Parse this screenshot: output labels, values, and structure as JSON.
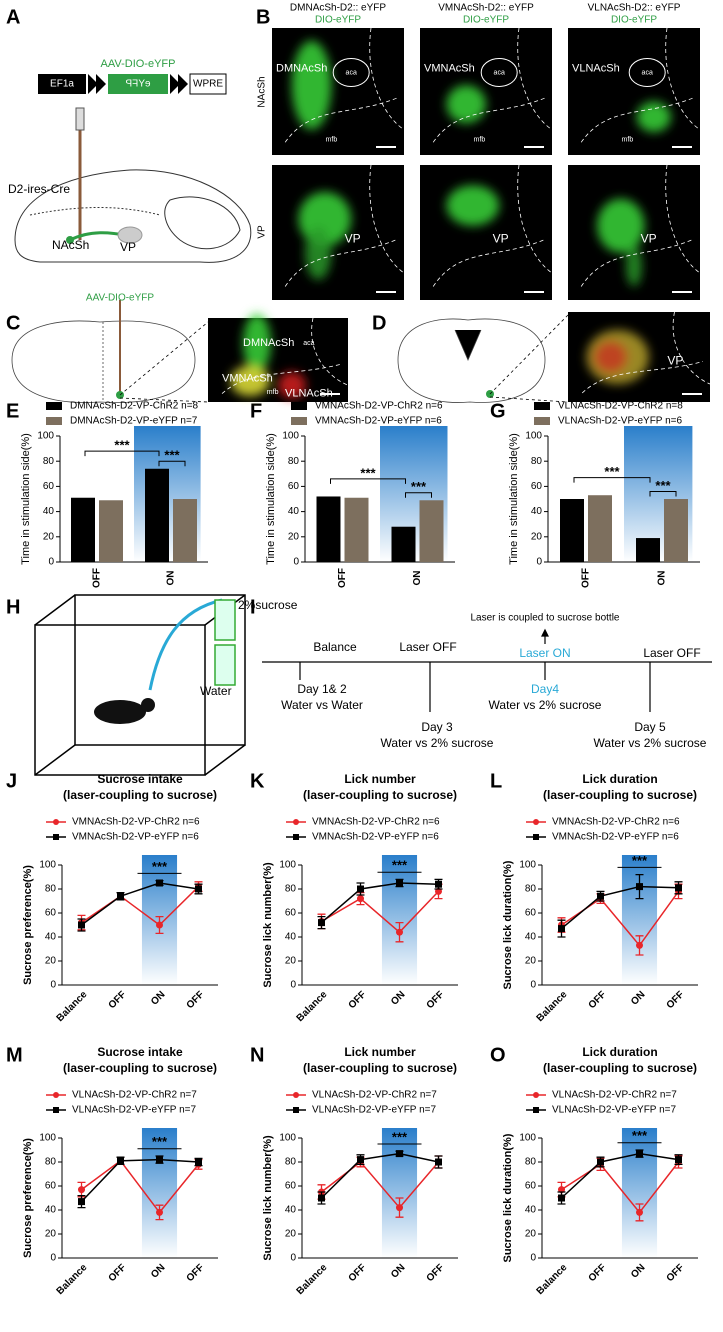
{
  "labels": [
    "A",
    "B",
    "C",
    "D",
    "E",
    "F",
    "G",
    "H",
    "I",
    "J",
    "K",
    "L",
    "M",
    "N",
    "O"
  ],
  "a": {
    "vector": "AAV-DIO-eYFP",
    "promoter": "EF1a",
    "gene": "eYFP",
    "wpre": "WPRE",
    "mouse": "D2-ires-Cre",
    "nacsh": "NAcSh",
    "vp": "VP"
  },
  "b": {
    "columns": [
      {
        "title": "DMNAcSh-D2:: eYFP",
        "virus": "DIO-eYFP"
      },
      {
        "title": "VMNAcSh-D2:: eYFP",
        "virus": "DIO-eYFP"
      },
      {
        "title": "VLNAcSh-D2:: eYFP",
        "virus": "DIO-eYFP"
      }
    ],
    "rows": [
      "NAcSh",
      "VP"
    ],
    "image_labels": [
      "DMNAcSh",
      "aca",
      "mfb",
      "VMNAcSh",
      "aca",
      "mfb",
      "VLNAcSh",
      "aca",
      "mfb",
      "VP",
      "VP",
      "VP"
    ]
  },
  "c": {
    "virus": "AAV-DIO-eYFP",
    "labels": [
      "DMNAcSh",
      "aca",
      "VMNAcSh",
      "mfb",
      "VLNAcSh"
    ]
  },
  "d": {
    "label": "VP"
  },
  "h": {
    "sucrose": "2%sucrose",
    "water": "Water"
  },
  "i": {
    "note": "Laser is coupled to sucrose bottle",
    "stages": [
      "Balance",
      "Laser OFF",
      "Laser ON",
      "Laser OFF"
    ],
    "days": [
      {
        "day": "Day 1& 2",
        "test": "Water vs Water"
      },
      {
        "day": "Day 3",
        "test": "Water vs 2% sucrose"
      },
      {
        "day": "Day4",
        "test": "Water vs 2% sucrose"
      },
      {
        "day": "Day 5",
        "test": "Water vs 2% sucrose"
      }
    ]
  },
  "chart_data": [
    {
      "type": "bar",
      "y_label": "Time in stimulation side(%)",
      "categories": [
        "OFF",
        "ON"
      ],
      "ylim": [
        0,
        100
      ],
      "yticks": [
        0,
        20,
        40,
        60,
        80,
        100
      ],
      "annotations": [
        "***",
        "***"
      ],
      "series": [
        {
          "name": "DMNAcSh-D2-VP-ChR2 n=8",
          "color": "#000000",
          "values": [
            51,
            74
          ]
        },
        {
          "name": "DMNAcSh-D2-VP-eYFP n=7",
          "color": "#7d6f5e",
          "values": [
            49,
            50
          ]
        }
      ]
    },
    {
      "type": "bar",
      "y_label": "Time in stimulation side(%)",
      "categories": [
        "OFF",
        "ON"
      ],
      "ylim": [
        0,
        100
      ],
      "yticks": [
        0,
        20,
        40,
        60,
        80,
        100
      ],
      "annotations": [
        "***",
        "***"
      ],
      "series": [
        {
          "name": "VMNAcSh-D2-VP-ChR2 n=6",
          "color": "#000000",
          "values": [
            52,
            28
          ]
        },
        {
          "name": "VMNAcSh-D2-VP-eYFP n=6",
          "color": "#7d6f5e",
          "values": [
            51,
            49
          ]
        }
      ]
    },
    {
      "type": "bar",
      "y_label": "Time in stimulation side(%)",
      "categories": [
        "OFF",
        "ON"
      ],
      "ylim": [
        0,
        100
      ],
      "yticks": [
        0,
        20,
        40,
        60,
        80,
        100
      ],
      "annotations": [
        "***",
        "***"
      ],
      "series": [
        {
          "name": "VLNAcSh-D2-VP-ChR2 n=8",
          "color": "#000000",
          "values": [
            50,
            19
          ]
        },
        {
          "name": "VLNAcSh-D2-VP-eYFP n=6",
          "color": "#7d6f5e",
          "values": [
            53,
            50
          ]
        }
      ]
    },
    {
      "type": "line",
      "title": "Sucrose intake",
      "subtitle": "(laser-coupling to sucrose)",
      "y_label": "Sucrose preference(%)",
      "categories": [
        "Balance",
        "OFF",
        "ON",
        "OFF"
      ],
      "ylim": [
        0,
        100
      ],
      "yticks": [
        0,
        20,
        40,
        60,
        80,
        100
      ],
      "annotations": [
        "***"
      ],
      "series": [
        {
          "name": "VMNAcSh-D2-VP-ChR2 n=6",
          "color": "#e8262a",
          "values": [
            52,
            74,
            50,
            82
          ],
          "errors": [
            6,
            3,
            7,
            4
          ]
        },
        {
          "name": "VMNAcSh-D2-VP-eYFP n=6",
          "color": "#000000",
          "values": [
            50,
            74,
            85,
            80
          ],
          "errors": [
            5,
            3,
            2,
            4
          ]
        }
      ]
    },
    {
      "type": "line",
      "title": "Lick number",
      "subtitle": "(laser-coupling to sucrose)",
      "y_label": "Sucrose lick number(%)",
      "categories": [
        "Balance",
        "OFF",
        "ON",
        "OFF"
      ],
      "ylim": [
        0,
        100
      ],
      "yticks": [
        0,
        20,
        40,
        60,
        80,
        100
      ],
      "annotations": [
        "***"
      ],
      "series": [
        {
          "name": "VMNAcSh-D2-VP-ChR2 n=6",
          "color": "#e8262a",
          "values": [
            53,
            72,
            44,
            78
          ],
          "errors": [
            6,
            5,
            8,
            6
          ]
        },
        {
          "name": "VMNAcSh-D2-VP-eYFP n=6",
          "color": "#000000",
          "values": [
            52,
            80,
            85,
            84
          ],
          "errors": [
            5,
            5,
            3,
            4
          ]
        }
      ]
    },
    {
      "type": "line",
      "title": "Lick duration",
      "subtitle": "(laser-coupling to sucrose)",
      "y_label": "Sucrose lick duration(%)",
      "categories": [
        "Balance",
        "OFF",
        "ON",
        "OFF"
      ],
      "ylim": [
        0,
        100
      ],
      "yticks": [
        0,
        20,
        40,
        60,
        80,
        100
      ],
      "annotations": [
        "***"
      ],
      "series": [
        {
          "name": "VMNAcSh-D2-VP-ChR2 n=6",
          "color": "#e8262a",
          "values": [
            50,
            72,
            33,
            78
          ],
          "errors": [
            6,
            4,
            8,
            6
          ]
        },
        {
          "name": "VMNAcSh-D2-VP-eYFP n=6",
          "color": "#000000",
          "values": [
            47,
            74,
            82,
            81
          ],
          "errors": [
            7,
            4,
            10,
            5
          ]
        }
      ]
    },
    {
      "type": "line",
      "title": "Sucrose intake",
      "subtitle": "(laser-coupling to sucrose)",
      "y_label": "Sucrose preference(%)",
      "categories": [
        "Balance",
        "OFF",
        "ON",
        "OFF"
      ],
      "ylim": [
        0,
        100
      ],
      "yticks": [
        0,
        20,
        40,
        60,
        80,
        100
      ],
      "annotations": [
        "***"
      ],
      "series": [
        {
          "name": "VLNAcSh-D2-VP-ChR2 n=7",
          "color": "#e8262a",
          "values": [
            57,
            81,
            38,
            78
          ],
          "errors": [
            6,
            3,
            6,
            4
          ]
        },
        {
          "name": "VLNAcSh-D2-VP-eYFP n=7",
          "color": "#000000",
          "values": [
            47,
            81,
            82,
            80
          ],
          "errors": [
            5,
            3,
            3,
            3
          ]
        }
      ]
    },
    {
      "type": "line",
      "title": "Lick number",
      "subtitle": "(laser-coupling to sucrose)",
      "y_label": "Sucrose lick number(%)",
      "categories": [
        "Balance",
        "OFF",
        "ON",
        "OFF"
      ],
      "ylim": [
        0,
        100
      ],
      "yticks": [
        0,
        20,
        40,
        60,
        80,
        100
      ],
      "annotations": [
        "***"
      ],
      "series": [
        {
          "name": "VLNAcSh-D2-VP-ChR2 n=7",
          "color": "#e8262a",
          "values": [
            55,
            80,
            42,
            80
          ],
          "errors": [
            6,
            4,
            8,
            5
          ]
        },
        {
          "name": "VLNAcSh-D2-VP-eYFP n=7",
          "color": "#000000",
          "values": [
            50,
            82,
            87,
            80
          ],
          "errors": [
            5,
            4,
            2,
            5
          ]
        }
      ]
    },
    {
      "type": "line",
      "title": "Lick duration",
      "subtitle": "(laser-coupling to sucrose)",
      "y_label": "Sucrose lick duration(%)",
      "categories": [
        "Balance",
        "OFF",
        "ON",
        "OFF"
      ],
      "ylim": [
        0,
        100
      ],
      "yticks": [
        0,
        20,
        40,
        60,
        80,
        100
      ],
      "annotations": [
        "***"
      ],
      "series": [
        {
          "name": "VLNAcSh-D2-VP-ChR2 n=7",
          "color": "#e8262a",
          "values": [
            57,
            78,
            38,
            80
          ],
          "errors": [
            6,
            5,
            7,
            5
          ]
        },
        {
          "name": "VLNAcSh-D2-VP-eYFP n=7",
          "color": "#000000",
          "values": [
            50,
            80,
            87,
            82
          ],
          "errors": [
            5,
            4,
            3,
            4
          ]
        }
      ]
    }
  ]
}
